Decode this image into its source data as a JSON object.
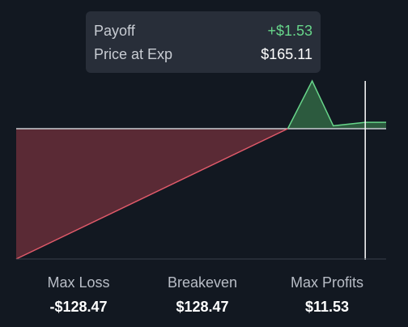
{
  "tooltip": {
    "payoff_label": "Payoff",
    "payoff_value": "+$1.53",
    "price_label": "Price at Exp",
    "price_value": "$165.11"
  },
  "stats": [
    {
      "label": "Max Loss",
      "value": "-$128.47"
    },
    {
      "label": "Breakeven",
      "value": "$128.47"
    },
    {
      "label": "Max Profits",
      "value": "$11.53"
    }
  ],
  "colors": {
    "background": "#121821",
    "loss_fill": "#5a2a35",
    "loss_line": "#e05a6a",
    "profit_fill": "#2c5a3e",
    "profit_line": "#67d58a",
    "zero_line": "#c9ccd2",
    "cursor_line": "#ffffff",
    "tooltip_bg": "#282e39"
  },
  "chart_data": {
    "type": "area",
    "x": [
      0,
      128.47,
      140,
      150,
      165.11,
      175
    ],
    "y": [
      -128.47,
      0,
      11.53,
      0.7,
      1.53,
      1.53
    ],
    "cursor_x": 165.11,
    "cursor_y": 1.53,
    "grid": false
  }
}
